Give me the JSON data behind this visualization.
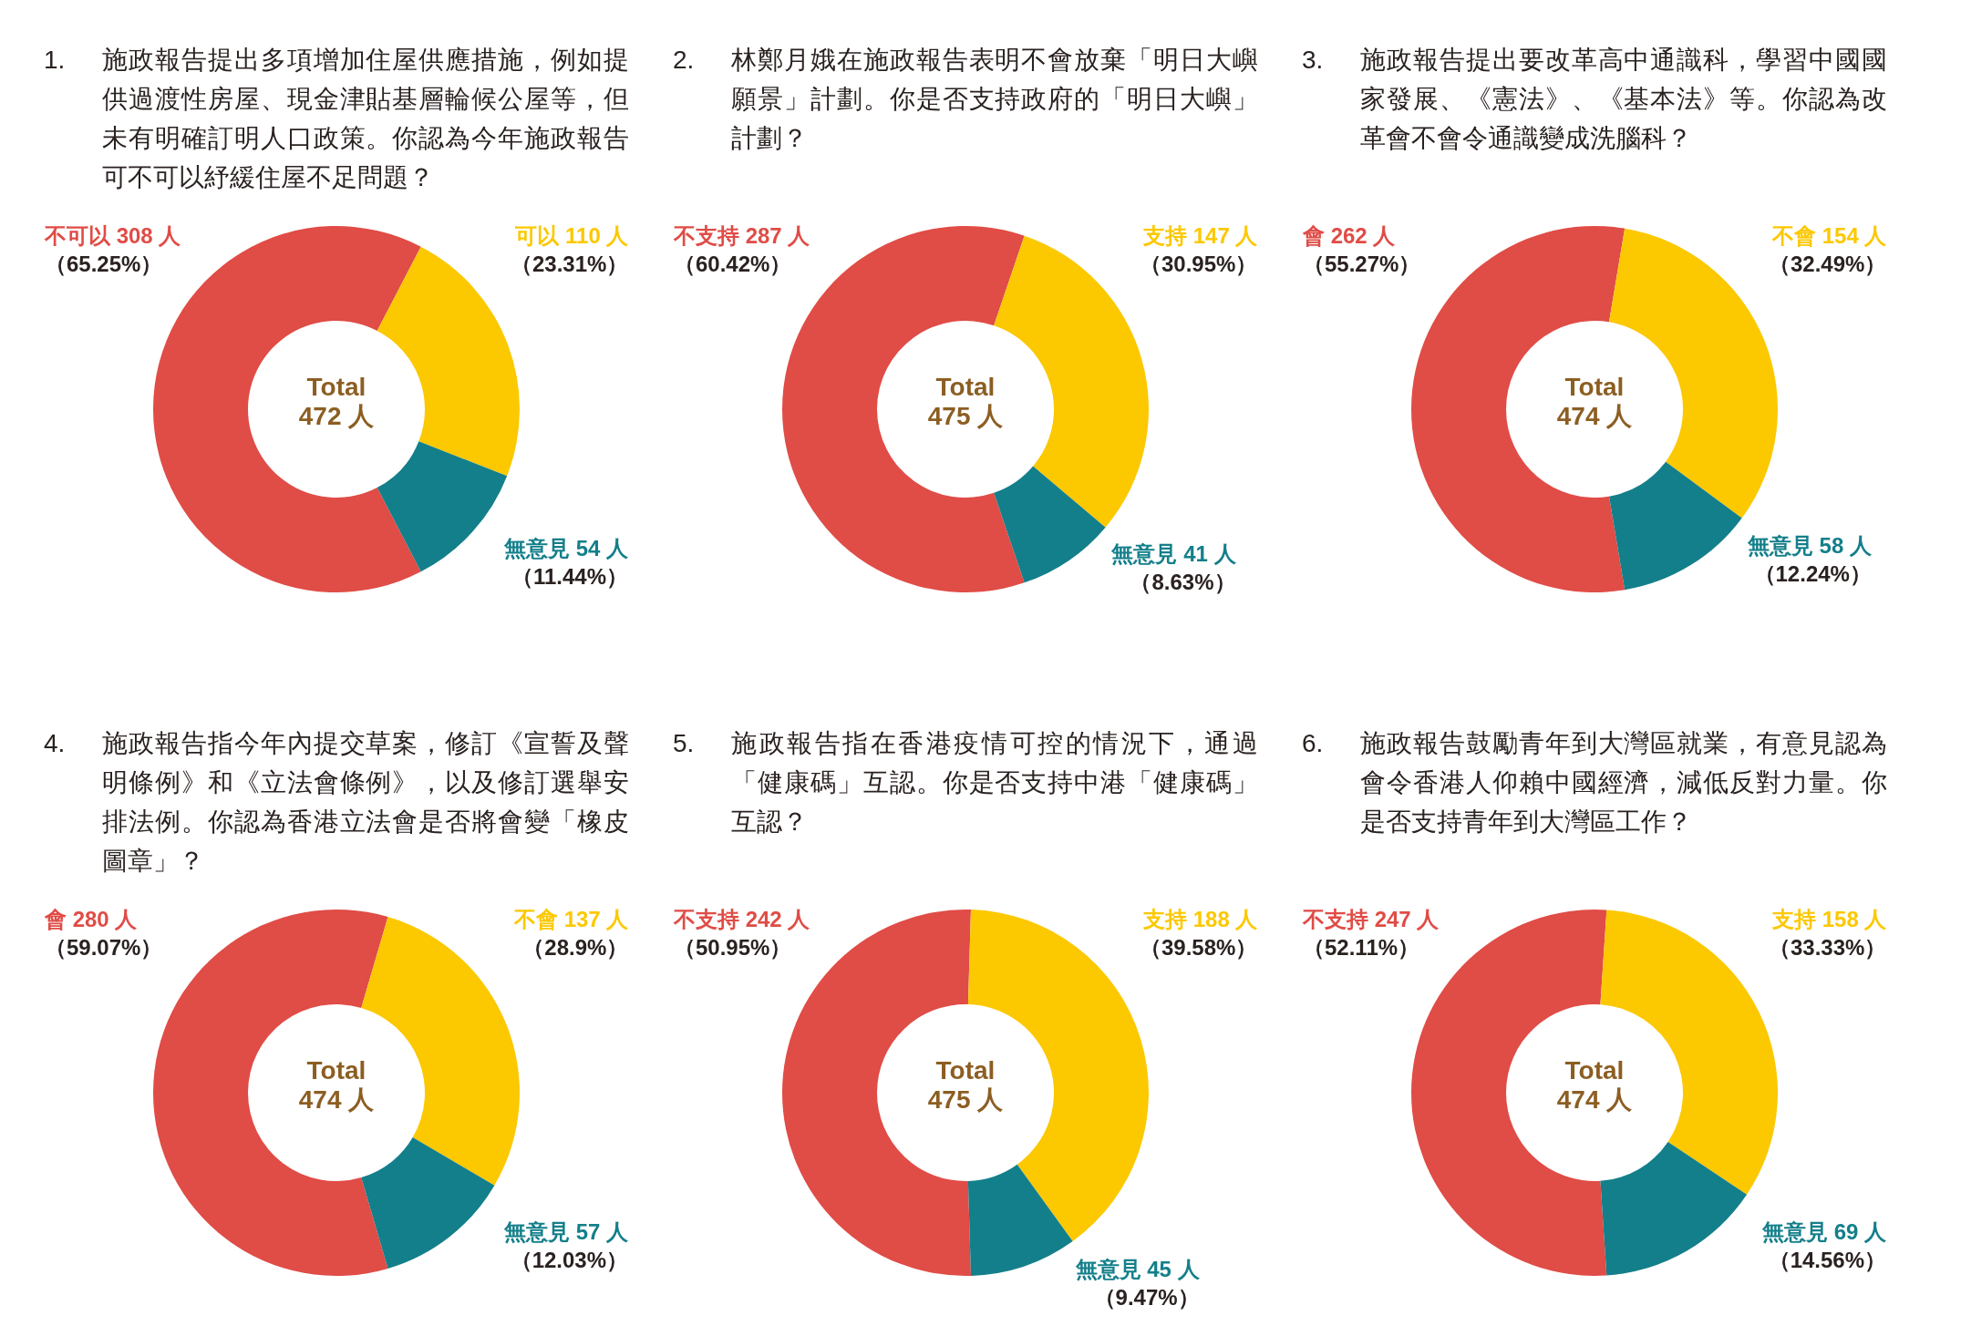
{
  "chart_data": [
    {
      "type": "donut",
      "title": "1. 施政報告提出多項增加住屋供應措施，例如提供過渡性房屋、現金津貼基層輪候公屋等，但未有明確訂明人口政策。你認為今年施政報告可不可以紓緩住屋不足問題？",
      "categories": [
        "不可以",
        "可以",
        "無意見"
      ],
      "values": [
        308,
        110,
        54
      ],
      "colors": [
        "#e04c46",
        "#fcc800",
        "#137f8a"
      ],
      "value_labels": [
        "308 人",
        "110 人",
        "54 人"
      ],
      "annotations": [
        "Total\n472 人",
        "（65.25%）",
        "（23.31%）",
        "（11.44%）"
      ]
    },
    {
      "type": "donut",
      "title": "2. 林鄭月娥在施政報告表明不會放棄「明日大嶼願景」計劃。你是否支持政府的「明日大嶼」計劃？",
      "categories": [
        "不支持",
        "支持",
        "無意見"
      ],
      "values": [
        287,
        147,
        41
      ],
      "colors": [
        "#e04c46",
        "#fcc800",
        "#137f8a"
      ],
      "value_labels": [
        "287 人",
        "147 人",
        "41 人"
      ],
      "annotations": [
        "Total\n475 人",
        "（60.42%）",
        "（30.95%）",
        "（8.63%）"
      ]
    },
    {
      "type": "donut",
      "title": "3. 施政報告提出要改革高中通識科，學習中國國家發展、《憲法》、《基本法》等。你認為改革會不會令通識變成洗腦科？",
      "categories": [
        "會",
        "不會",
        "無意見"
      ],
      "values": [
        262,
        154,
        58
      ],
      "colors": [
        "#e04c46",
        "#fcc800",
        "#137f8a"
      ],
      "value_labels": [
        "262 人",
        "154 人",
        "58 人"
      ],
      "annotations": [
        "Total\n474 人",
        "（55.27%）",
        "（32.49%）",
        "（12.24%）"
      ]
    },
    {
      "type": "donut",
      "title": "4. 施政報告指今年內提交草案，修訂《宣誓及聲明條例》和《立法會條例》，以及修訂選舉安排法例。你認為香港立法會是否將會變「橡皮圖章」？",
      "categories": [
        "會",
        "不會",
        "無意見"
      ],
      "values": [
        280,
        137,
        57
      ],
      "colors": [
        "#e04c46",
        "#fcc800",
        "#137f8a"
      ],
      "value_labels": [
        "280 人",
        "137 人",
        "57 人"
      ],
      "annotations": [
        "Total\n474 人",
        "（59.07%）",
        "（28.9%）",
        "（12.03%）"
      ]
    },
    {
      "type": "donut",
      "title": "5. 施政報告指在香港疫情可控的情況下，通過「健康碼」互認。你是否支持中港「健康碼」互認？",
      "categories": [
        "不支持",
        "支持",
        "無意見"
      ],
      "values": [
        242,
        188,
        45
      ],
      "colors": [
        "#e04c46",
        "#fcc800",
        "#137f8a"
      ],
      "value_labels": [
        "242 人",
        "188 人",
        "45 人"
      ],
      "annotations": [
        "Total\n475 人",
        "（50.95%）",
        "（39.58%）",
        "（9.47%）"
      ]
    },
    {
      "type": "donut",
      "title": "6. 施政報告鼓勵青年到大灣區就業，有意見認為會令香港人仰賴中國經濟，減低反對力量。你是否支持青年到大灣區工作？",
      "categories": [
        "不支持",
        "支持",
        "無意見"
      ],
      "values": [
        247,
        158,
        69
      ],
      "colors": [
        "#e04c46",
        "#fcc800",
        "#137f8a"
      ],
      "value_labels": [
        "247 人",
        "158 人",
        "69 人"
      ],
      "annotations": [
        "Total\n474 人",
        "（52.11%）",
        "（33.33%）",
        "（14.56%）"
      ]
    }
  ]
}
